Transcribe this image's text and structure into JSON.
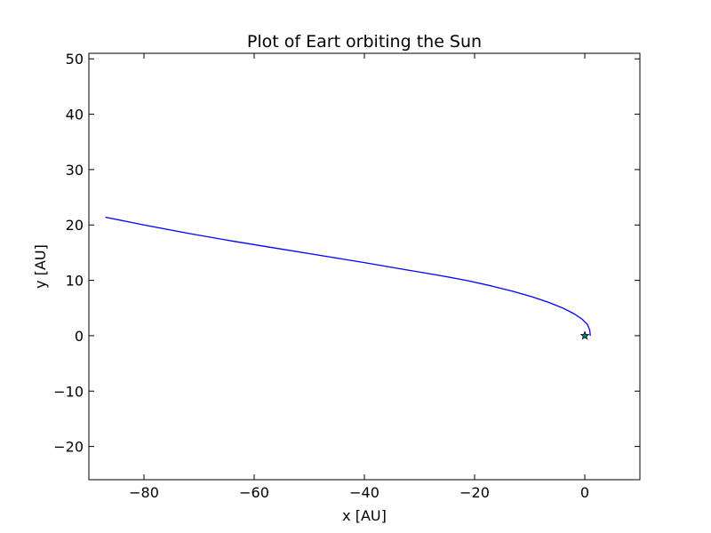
{
  "chart_data": {
    "type": "line",
    "title": "Plot of Eart orbiting the Sun",
    "xlabel": "x [AU]",
    "ylabel": "y [AU]",
    "xlim": [
      -90,
      10
    ],
    "ylim": [
      -26,
      51
    ],
    "grid": false,
    "x_ticks": [
      {
        "value": -80,
        "label": "−80"
      },
      {
        "value": -60,
        "label": "−60"
      },
      {
        "value": -40,
        "label": "−40"
      },
      {
        "value": -20,
        "label": "−20"
      },
      {
        "value": 0,
        "label": "0"
      }
    ],
    "y_ticks": [
      {
        "value": -20,
        "label": "−20"
      },
      {
        "value": -10,
        "label": "−10"
      },
      {
        "value": 0,
        "label": "0"
      },
      {
        "value": 10,
        "label": "10"
      },
      {
        "value": 20,
        "label": "20"
      },
      {
        "value": 30,
        "label": "30"
      },
      {
        "value": 40,
        "label": "40"
      },
      {
        "value": 50,
        "label": "50"
      }
    ],
    "series": [
      {
        "color": "#0000ff",
        "points": [
          [
            1.0,
            0.0
          ],
          [
            0.9,
            1.0
          ],
          [
            0.5,
            2.0
          ],
          [
            -0.5,
            3.0
          ],
          [
            -2.0,
            4.0
          ],
          [
            -4.0,
            5.0
          ],
          [
            -6.5,
            6.0
          ],
          [
            -9.5,
            7.0
          ],
          [
            -13.0,
            8.0
          ],
          [
            -17.0,
            9.0
          ],
          [
            -21.5,
            10.0
          ],
          [
            -27.0,
            11.0
          ],
          [
            -33.0,
            12.0
          ],
          [
            -40.0,
            13.2
          ],
          [
            -48.0,
            14.5
          ],
          [
            -56.0,
            15.8
          ],
          [
            -64.0,
            17.1
          ],
          [
            -72.0,
            18.5
          ],
          [
            -80.0,
            20.0
          ],
          [
            -87.0,
            21.4
          ]
        ]
      }
    ],
    "markers": [
      {
        "shape": "star",
        "x": 0,
        "y": 0,
        "fill": "#008080",
        "stroke": "#000000"
      }
    ]
  }
}
